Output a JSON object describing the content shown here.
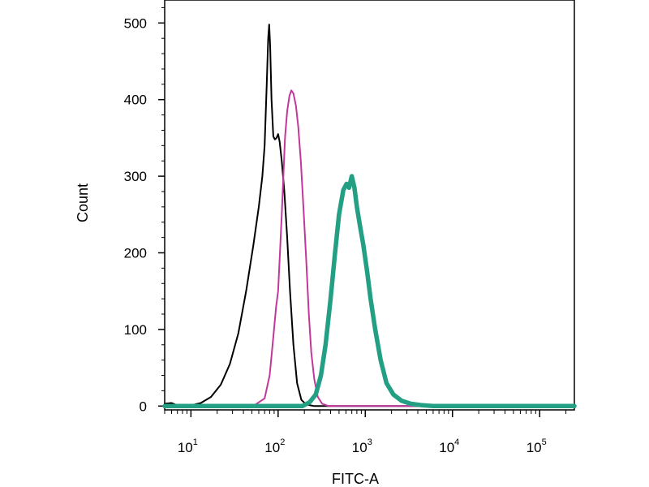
{
  "chart_data": {
    "type": "line",
    "xlabel": "FITC-A",
    "ylabel": "Count",
    "x_scale": "log",
    "xlim": [
      5,
      250000
    ],
    "ylim": [
      -5,
      530
    ],
    "grid": false,
    "legend": "none",
    "y_ticks": [
      {
        "value": 0,
        "label": "0"
      },
      {
        "value": 100,
        "label": "100"
      },
      {
        "value": 200,
        "label": "200"
      },
      {
        "value": 300,
        "label": "300"
      },
      {
        "value": 400,
        "label": "400"
      },
      {
        "value": 500,
        "label": "500"
      }
    ],
    "x_ticks": [
      {
        "value": 10,
        "base": "10",
        "exp": "1"
      },
      {
        "value": 100,
        "base": "10",
        "exp": "2"
      },
      {
        "value": 1000,
        "base": "10",
        "exp": "3"
      },
      {
        "value": 10000,
        "base": "10",
        "exp": "4"
      },
      {
        "value": 100000,
        "base": "10",
        "exp": "5"
      }
    ],
    "series": [
      {
        "color": "#000000",
        "stroke": "thin",
        "points": [
          [
            5,
            3
          ],
          [
            6,
            4
          ],
          [
            7,
            1
          ],
          [
            8,
            0
          ],
          [
            10,
            1
          ],
          [
            13,
            4
          ],
          [
            17,
            12
          ],
          [
            22,
            28
          ],
          [
            28,
            55
          ],
          [
            35,
            95
          ],
          [
            43,
            150
          ],
          [
            52,
            210
          ],
          [
            60,
            260
          ],
          [
            66,
            300
          ],
          [
            70,
            340
          ],
          [
            74,
            420
          ],
          [
            77,
            480
          ],
          [
            79,
            498
          ],
          [
            81,
            470
          ],
          [
            84,
            400
          ],
          [
            88,
            352
          ],
          [
            92,
            348
          ],
          [
            96,
            350
          ],
          [
            100,
            355
          ],
          [
            104,
            345
          ],
          [
            110,
            320
          ],
          [
            118,
            280
          ],
          [
            127,
            220
          ],
          [
            137,
            150
          ],
          [
            150,
            80
          ],
          [
            165,
            30
          ],
          [
            185,
            8
          ],
          [
            210,
            2
          ],
          [
            260,
            0
          ],
          [
            250000,
            0
          ]
        ]
      },
      {
        "color": "#c2389a",
        "stroke": "thin",
        "points": [
          [
            5,
            0
          ],
          [
            40,
            0
          ],
          [
            55,
            2
          ],
          [
            70,
            10
          ],
          [
            80,
            40
          ],
          [
            88,
            90
          ],
          [
            95,
            130
          ],
          [
            100,
            150
          ],
          [
            105,
            200
          ],
          [
            110,
            250
          ],
          [
            115,
            300
          ],
          [
            120,
            350
          ],
          [
            127,
            385
          ],
          [
            135,
            405
          ],
          [
            142,
            412
          ],
          [
            150,
            408
          ],
          [
            160,
            392
          ],
          [
            170,
            365
          ],
          [
            182,
            320
          ],
          [
            195,
            260
          ],
          [
            210,
            190
          ],
          [
            225,
            120
          ],
          [
            240,
            70
          ],
          [
            260,
            35
          ],
          [
            285,
            12
          ],
          [
            320,
            3
          ],
          [
            380,
            0
          ],
          [
            250000,
            0
          ]
        ]
      },
      {
        "color": "#239f84",
        "stroke": "thick",
        "points": [
          [
            5,
            0
          ],
          [
            190,
            0
          ],
          [
            230,
            5
          ],
          [
            270,
            15
          ],
          [
            310,
            40
          ],
          [
            350,
            80
          ],
          [
            400,
            140
          ],
          [
            450,
            200
          ],
          [
            500,
            250
          ],
          [
            560,
            282
          ],
          [
            610,
            290
          ],
          [
            650,
            285
          ],
          [
            700,
            300
          ],
          [
            750,
            285
          ],
          [
            800,
            260
          ],
          [
            870,
            235
          ],
          [
            950,
            210
          ],
          [
            1050,
            175
          ],
          [
            1150,
            140
          ],
          [
            1300,
            100
          ],
          [
            1500,
            60
          ],
          [
            1750,
            30
          ],
          [
            2100,
            15
          ],
          [
            2600,
            7
          ],
          [
            3300,
            3
          ],
          [
            4500,
            1
          ],
          [
            6000,
            0
          ],
          [
            250000,
            0
          ]
        ]
      }
    ]
  }
}
